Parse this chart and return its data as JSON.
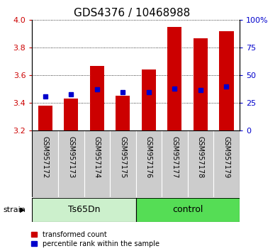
{
  "title": "GDS4376 / 10468988",
  "categories": [
    "GSM957172",
    "GSM957173",
    "GSM957174",
    "GSM957175",
    "GSM957176",
    "GSM957177",
    "GSM957178",
    "GSM957179"
  ],
  "bar_baseline": 3.2,
  "bar_tops": [
    3.38,
    3.43,
    3.67,
    3.45,
    3.64,
    3.95,
    3.87,
    3.92
  ],
  "percentile_values": [
    3.445,
    3.462,
    3.5,
    3.478,
    3.48,
    3.503,
    3.492,
    3.518
  ],
  "ylim": [
    3.2,
    4.0
  ],
  "y2lim": [
    0,
    100
  ],
  "yticks": [
    3.2,
    3.4,
    3.6,
    3.8,
    4.0
  ],
  "y2ticks": [
    0,
    25,
    50,
    75,
    100
  ],
  "bar_color": "#cc0000",
  "percentile_color": "#0000cc",
  "bar_width": 0.55,
  "group1_label": "Ts65Dn",
  "group2_label": "control",
  "group1_color": "#ccf0cc",
  "group2_color": "#55dd55",
  "xticklabel_area_color": "#cccccc",
  "legend_red_label": "transformed count",
  "legend_blue_label": "percentile rank within the sample",
  "strain_label": "strain",
  "title_fontsize": 11,
  "tick_label_color_red": "#cc0000",
  "tick_label_color_blue": "#0000cc"
}
